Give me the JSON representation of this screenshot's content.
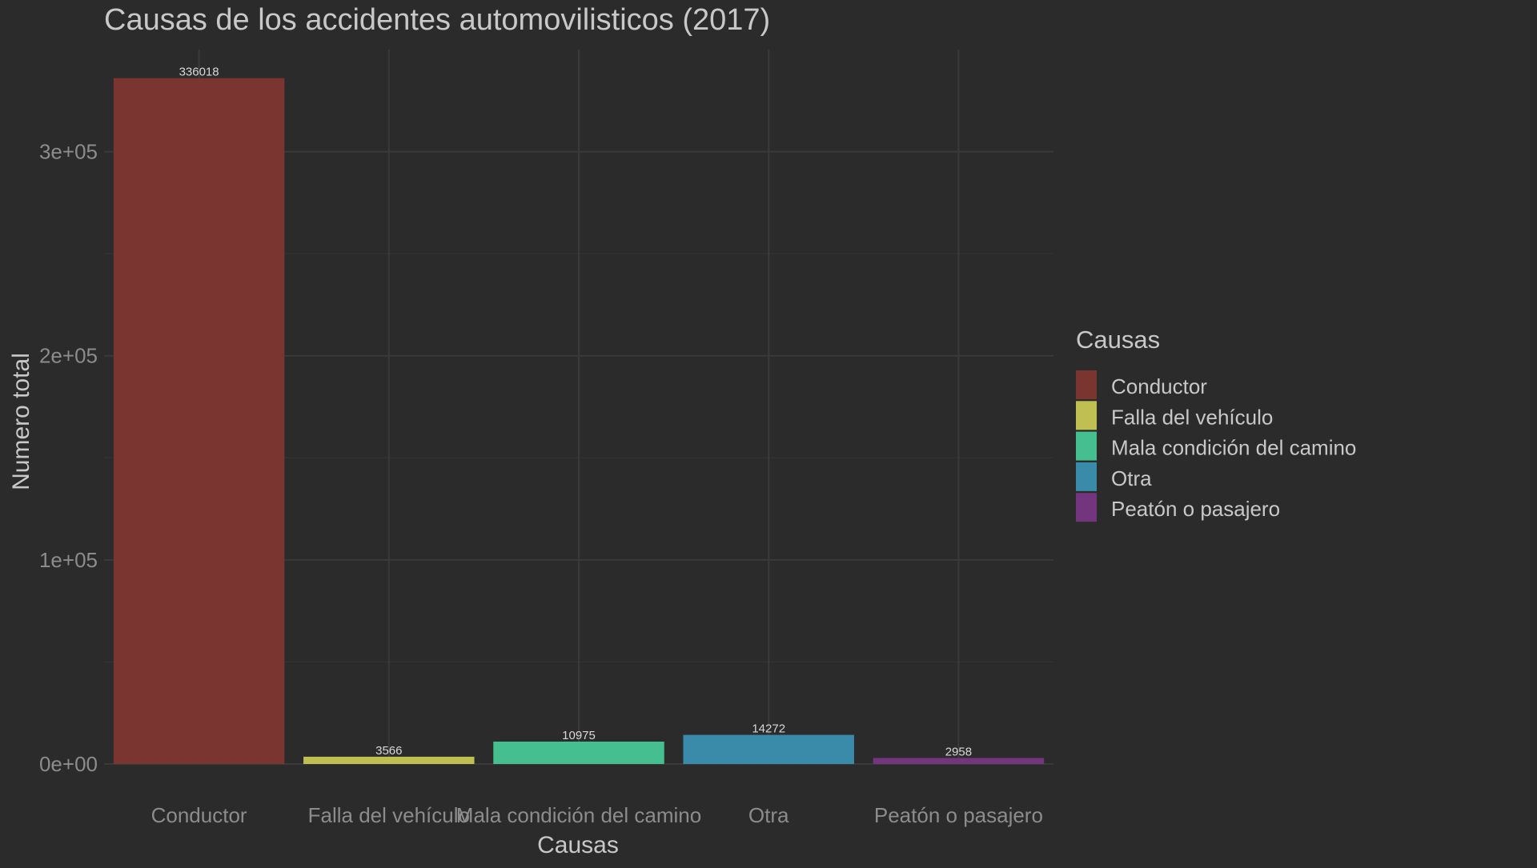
{
  "chart_data": {
    "type": "bar",
    "title": "Causas de los accidentes automovilisticos (2017)",
    "xlabel": "Causas",
    "ylabel": "Numero total",
    "categories": [
      "Conductor",
      "Falla del vehículo",
      "Mala condición del camino",
      "Otra",
      "Peatón o pasajero"
    ],
    "values": [
      336018,
      3566,
      10975,
      14272,
      2958
    ],
    "data_labels": [
      "336018",
      "3566",
      "10975",
      "14272",
      "2958"
    ],
    "colors": [
      "#7b3530",
      "#bfbf52",
      "#45bf8f",
      "#3a8aaa",
      "#73357d"
    ],
    "yticks": [
      0,
      100000,
      200000,
      300000
    ],
    "ytick_labels": [
      "0e+00",
      "1e+05",
      "2e+05",
      "3e+05"
    ],
    "ylim": [
      0,
      350000
    ],
    "grid": true,
    "legend": {
      "title": "Causas",
      "placement": "right",
      "items": [
        "Conductor",
        "Falla del vehículo",
        "Mala condición del camino",
        "Otra",
        "Peatón o pasajero"
      ]
    }
  }
}
